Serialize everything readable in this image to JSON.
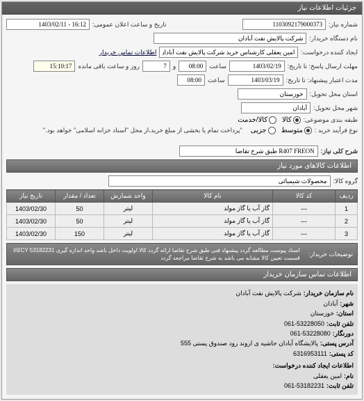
{
  "header": {
    "title": "جزئیات اطلاعات نیاز"
  },
  "form": {
    "reqno_label": "شماره نیاز:",
    "reqno": "1103092179000373",
    "pubdate_label": "تاریخ و ساعت اعلان عمومی:",
    "pubdate": "16:12 - 1403/02/11",
    "buyer_label": "نام دستگاه خریدار:",
    "buyer": "شرکت پالایش نفت آبادان",
    "requester_label": "ایجاد کننده درخواست:",
    "requester": "امین یعقلی کارشناس خرید شرکت پالایش نفت آبادان",
    "contact_link": "اطلاعات تماس خریدار",
    "deadline_label": "مهلت ارسال پاسخ: تا تاریخ:",
    "deadline_date": "1403/02/19",
    "time_label": "ساعت",
    "deadline_time": "08:00",
    "and_label": "و",
    "deadline_days": "7",
    "remaining_label": "روز و ساعت باقی مانده",
    "remaining_time": "15:10:17",
    "validity_label": "مدت اعتبار پیشنهاد: تا تاریخ:",
    "validity_date": "1403/03/19",
    "validity_time": "08:00",
    "delivery_province_label": "استان محل تحویل:",
    "delivery_province": "خوزستان",
    "delivery_city_label": "شهر محل تحویل:",
    "delivery_city": "آبادان",
    "pricing_label": "طبقه بندی موضوعی:",
    "process_label": "نوع فرآیند خرید :",
    "note": "\"پرداخت تمام یا بخشی از مبلغ خرید،از محل \"اسناد خزانه اسلامی\" خواهد بود.\""
  },
  "radios": {
    "kala": "کالا",
    "khedmat": "کالا/خدمت",
    "small": "کوچک",
    "medium": "متوسط",
    "large": "جزیی"
  },
  "subject": {
    "label": "شرح کلی نیاز:",
    "value": "R407 FREON طبق شرح تقاضا"
  },
  "goods_section_title": "اطلاعات کالاهای مورد نیاز",
  "group": {
    "label": "گروه کالا:",
    "value": "محصولات شیمیائی"
  },
  "table": {
    "headers": {
      "row": "ردیف",
      "code": "کد کالا",
      "name": "نام کالا",
      "unit": "واحد شمارش",
      "qty": "تعداد / مقدار",
      "date": "تاریخ نیاز"
    },
    "rows": [
      {
        "r": "1",
        "code": "---",
        "name": "گاز آب یا گاز مولد",
        "unit": "لیتر",
        "qty": "50",
        "date": "1403/02/30"
      },
      {
        "r": "2",
        "code": "---",
        "name": "گاز آب یا گاز مولد",
        "unit": "لیتر",
        "qty": "50",
        "date": "1403/02/30"
      },
      {
        "r": "3",
        "code": "---",
        "name": "گاز آب یا گاز مولد",
        "unit": "لیتر",
        "qty": "150",
        "date": "1403/02/30"
      }
    ]
  },
  "description": {
    "label": "توضیحات خریدار:",
    "text": "اسناد پیوست مطالعه گردد پیشنهاد فنی طبق شرح تقاضا ارائه گردد کالا اولویت داخل باشد واحد اندازه گیری CY 53182231کالا قسمت تعیین کالا مشابه می باشد به شرح تقاضا مراجعه گردد"
  },
  "contact_section_title": "اطلاعات تماس سازمان خریدار",
  "contact": {
    "org_label": "نام سازمان خریدار:",
    "org": "شرکت پالایش نفت آبادان",
    "city_label": "شهر:",
    "city": "آبادان",
    "province_label": "استان:",
    "province": "خوزستان",
    "phone_label": "تلفن ثابت:",
    "phone": "061-53228050",
    "fax_label": "دورنگار:",
    "fax": "061-53228080",
    "address_label": "آدرس پستی:",
    "address": "پالایشگاه آبادان حاشیه ی اروند رود صندوق پستی 555",
    "postcode_label": "کد پستی:",
    "postcode": "6316953111",
    "creator_title": "اطلاعات ایجاد کننده درخواست:",
    "name_label": "نام:",
    "name": "امین یعقلی",
    "cphone_label": "تلفن ثابت:",
    "cphone": "061-53182231"
  }
}
